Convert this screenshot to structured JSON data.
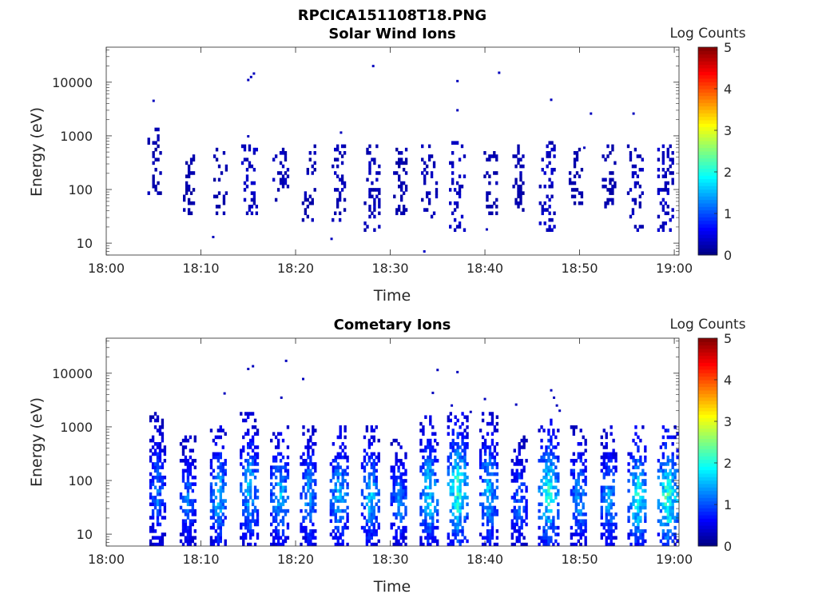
{
  "figure_title": "RPCICA151108T18.PNG",
  "chart_data": [
    {
      "type": "heatmap",
      "title": "Solar Wind Ions",
      "xlabel": "Time",
      "ylabel": "Energy (eV)",
      "x_ticks": [
        "18:00",
        "18:10",
        "18:20",
        "18:30",
        "18:40",
        "18:50",
        "19:00"
      ],
      "xlim_minutes": [
        0,
        60.5
      ],
      "y_ticks": [
        "10",
        "100",
        "1000",
        "10000"
      ],
      "y_scale": "log",
      "ylim": [
        6,
        45000
      ],
      "colorbar": {
        "label": "Log Counts",
        "ticks": [
          "0",
          "1",
          "2",
          "3",
          "4",
          "5"
        ],
        "range": [
          0,
          5
        ],
        "colormap": "jet"
      },
      "bursts": [
        {
          "t": 5.0,
          "w": 1.3,
          "lo": 90,
          "hi": 1000,
          "level": 0.25
        },
        {
          "t": 8.7,
          "w": 1.2,
          "lo": 40,
          "hi": 450,
          "level": 0.25
        },
        {
          "t": 12.0,
          "w": 1.4,
          "lo": 40,
          "hi": 450,
          "level": 0.25
        },
        {
          "t": 15.0,
          "w": 1.5,
          "lo": 40,
          "hi": 500,
          "level": 0.35
        },
        {
          "t": 18.3,
          "w": 1.5,
          "lo": 70,
          "hi": 450,
          "level": 0.3
        },
        {
          "t": 21.3,
          "w": 1.3,
          "lo": 30,
          "hi": 500,
          "level": 0.25
        },
        {
          "t": 24.5,
          "w": 1.4,
          "lo": 30,
          "hi": 500,
          "level": 0.3
        },
        {
          "t": 28.0,
          "w": 1.6,
          "lo": 20,
          "hi": 500,
          "level": 0.3
        },
        {
          "t": 31.0,
          "w": 1.4,
          "lo": 40,
          "hi": 450,
          "level": 0.25
        },
        {
          "t": 34.0,
          "w": 1.5,
          "lo": 30,
          "hi": 500,
          "level": 0.3
        },
        {
          "t": 37.0,
          "w": 1.6,
          "lo": 20,
          "hi": 600,
          "level": 0.35
        },
        {
          "t": 40.5,
          "w": 1.3,
          "lo": 40,
          "hi": 400,
          "level": 0.25
        },
        {
          "t": 43.5,
          "w": 1.2,
          "lo": 40,
          "hi": 500,
          "level": 0.25
        },
        {
          "t": 46.5,
          "w": 1.6,
          "lo": 20,
          "hi": 600,
          "level": 0.35
        },
        {
          "t": 49.5,
          "w": 1.3,
          "lo": 50,
          "hi": 450,
          "level": 0.25
        },
        {
          "t": 53.0,
          "w": 1.3,
          "lo": 50,
          "hi": 500,
          "level": 0.25
        },
        {
          "t": 55.8,
          "w": 1.6,
          "lo": 20,
          "hi": 500,
          "level": 0.3
        },
        {
          "t": 59.0,
          "w": 1.6,
          "lo": 20,
          "hi": 500,
          "level": 0.35
        }
      ],
      "points": [
        {
          "t": 5.0,
          "e": 4500,
          "level": 0.3
        },
        {
          "t": 15.0,
          "e": 11000,
          "level": 0.3
        },
        {
          "t": 15.3,
          "e": 12500,
          "level": 0.3
        },
        {
          "t": 15.6,
          "e": 14500,
          "level": 0.3
        },
        {
          "t": 28.2,
          "e": 20000,
          "level": 0.3
        },
        {
          "t": 37.1,
          "e": 10500,
          "level": 0.3
        },
        {
          "t": 41.5,
          "e": 15000,
          "level": 0.3
        },
        {
          "t": 37.1,
          "e": 3000,
          "level": 0.3
        },
        {
          "t": 47.0,
          "e": 4700,
          "level": 0.3
        },
        {
          "t": 51.2,
          "e": 2600,
          "level": 0.3
        },
        {
          "t": 55.7,
          "e": 2600,
          "level": 0.3
        },
        {
          "t": 24.8,
          "e": 1150,
          "level": 0.3
        },
        {
          "t": 15.0,
          "e": 980,
          "level": 0.3
        },
        {
          "t": 11.3,
          "e": 13,
          "level": 0.3
        },
        {
          "t": 33.6,
          "e": 7,
          "level": 0.35
        },
        {
          "t": 40.2,
          "e": 18,
          "level": 0.3
        },
        {
          "t": 23.8,
          "e": 12,
          "level": 0.3
        },
        {
          "t": 50.5,
          "e": 600,
          "level": 0.3
        }
      ]
    },
    {
      "type": "heatmap",
      "title": "Cometary Ions",
      "xlabel": "Time",
      "ylabel": "Energy (eV)",
      "x_ticks": [
        "18:00",
        "18:10",
        "18:20",
        "18:30",
        "18:40",
        "18:50",
        "19:00"
      ],
      "xlim_minutes": [
        0,
        60.5
      ],
      "y_ticks": [
        "10",
        "100",
        "1000",
        "10000"
      ],
      "y_scale": "log",
      "ylim": [
        6,
        45000
      ],
      "colorbar": {
        "label": "Log Counts",
        "ticks": [
          "0",
          "1",
          "2",
          "3",
          "4",
          "5"
        ],
        "range": [
          0,
          5
        ],
        "colormap": "jet"
      },
      "bursts": [
        {
          "t": 5.3,
          "w": 1.5,
          "lo": 6,
          "hi": 1500,
          "level": 1.0
        },
        {
          "t": 8.5,
          "w": 1.5,
          "lo": 6,
          "hi": 600,
          "level": 1.0
        },
        {
          "t": 11.8,
          "w": 1.7,
          "lo": 6,
          "hi": 800,
          "level": 1.3
        },
        {
          "t": 15.0,
          "w": 1.8,
          "lo": 6,
          "hi": 1500,
          "level": 1.3
        },
        {
          "t": 18.2,
          "w": 1.8,
          "lo": 6,
          "hi": 800,
          "level": 1.3
        },
        {
          "t": 21.3,
          "w": 1.7,
          "lo": 6,
          "hi": 800,
          "level": 1.2
        },
        {
          "t": 24.5,
          "w": 1.8,
          "lo": 6,
          "hi": 800,
          "level": 1.3
        },
        {
          "t": 27.8,
          "w": 1.8,
          "lo": 6,
          "hi": 800,
          "level": 1.3
        },
        {
          "t": 30.8,
          "w": 1.6,
          "lo": 6,
          "hi": 500,
          "level": 1.1
        },
        {
          "t": 34.0,
          "w": 1.8,
          "lo": 6,
          "hi": 1200,
          "level": 1.4
        },
        {
          "t": 37.0,
          "w": 2.0,
          "lo": 6,
          "hi": 1500,
          "level": 1.7
        },
        {
          "t": 40.3,
          "w": 1.8,
          "lo": 6,
          "hi": 1500,
          "level": 1.3
        },
        {
          "t": 43.5,
          "w": 1.5,
          "lo": 6,
          "hi": 500,
          "level": 1.0
        },
        {
          "t": 46.6,
          "w": 2.0,
          "lo": 6,
          "hi": 1200,
          "level": 1.6
        },
        {
          "t": 49.8,
          "w": 1.6,
          "lo": 6,
          "hi": 800,
          "level": 1.2
        },
        {
          "t": 53.0,
          "w": 1.6,
          "lo": 6,
          "hi": 800,
          "level": 1.2
        },
        {
          "t": 56.0,
          "w": 1.9,
          "lo": 6,
          "hi": 800,
          "level": 1.6
        },
        {
          "t": 59.2,
          "w": 2.0,
          "lo": 6,
          "hi": 800,
          "level": 1.8
        }
      ],
      "points": [
        {
          "t": 12.5,
          "e": 4200,
          "level": 0.3
        },
        {
          "t": 15.0,
          "e": 12000,
          "level": 0.3
        },
        {
          "t": 15.5,
          "e": 13500,
          "level": 0.3
        },
        {
          "t": 19.0,
          "e": 17000,
          "level": 0.3
        },
        {
          "t": 18.5,
          "e": 3500,
          "level": 0.3
        },
        {
          "t": 20.8,
          "e": 7800,
          "level": 0.3
        },
        {
          "t": 35.0,
          "e": 11500,
          "level": 0.3
        },
        {
          "t": 37.1,
          "e": 10500,
          "level": 0.3
        },
        {
          "t": 34.5,
          "e": 4300,
          "level": 0.3
        },
        {
          "t": 40.0,
          "e": 3300,
          "level": 0.3
        },
        {
          "t": 43.3,
          "e": 2600,
          "level": 0.3
        },
        {
          "t": 47.0,
          "e": 4800,
          "level": 0.3
        },
        {
          "t": 47.3,
          "e": 3500,
          "level": 0.3
        },
        {
          "t": 47.6,
          "e": 2500,
          "level": 0.3
        },
        {
          "t": 47.9,
          "e": 2000,
          "level": 0.3
        },
        {
          "t": 36.5,
          "e": 2500,
          "level": 0.35
        },
        {
          "t": 38.5,
          "e": 1900,
          "level": 0.3
        }
      ]
    }
  ]
}
